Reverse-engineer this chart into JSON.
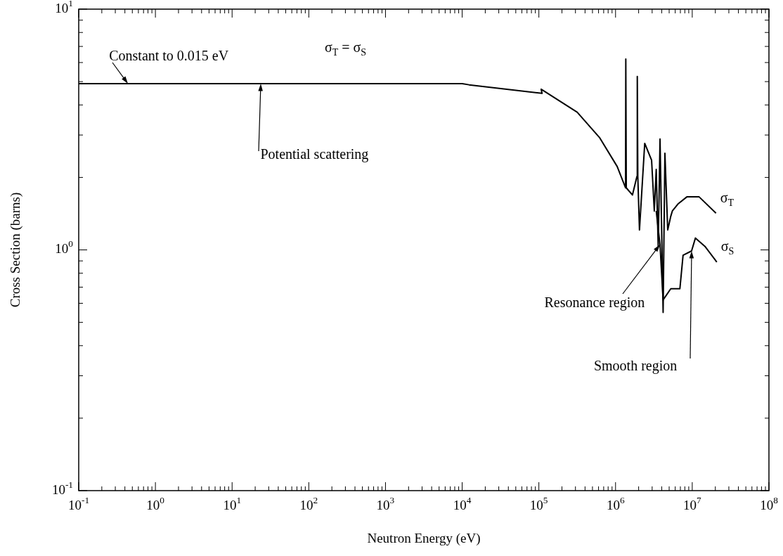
{
  "chart_data": {
    "type": "line",
    "xlabel": "Neutron Energy (eV)",
    "ylabel": "Cross Section (barns)",
    "log": "xy",
    "grid": false,
    "legend": "right",
    "marker": "none",
    "line_style": "solid",
    "xlim": [
      0.1,
      100000000
    ],
    "ylim": [
      0.1,
      10
    ],
    "xticks": [
      {
        "value": 0.1,
        "label": "10$^{-1}$"
      },
      {
        "value": 0.2,
        "label": null
      },
      {
        "value": 0.3,
        "label": null
      },
      {
        "value": 0.4,
        "label": null
      },
      {
        "value": 0.5,
        "label": null
      },
      {
        "value": 0.6,
        "label": null
      },
      {
        "value": 0.7,
        "label": null
      },
      {
        "value": 0.8,
        "label": null
      },
      {
        "value": 0.9,
        "label": null
      },
      {
        "value": 1,
        "label": "10$^{0}$"
      },
      {
        "value": 2,
        "label": null
      },
      {
        "value": 3,
        "label": null
      },
      {
        "value": 4,
        "label": null
      },
      {
        "value": 5,
        "label": null
      },
      {
        "value": 6,
        "label": null
      },
      {
        "value": 7,
        "label": null
      },
      {
        "value": 8,
        "label": null
      },
      {
        "value": 9,
        "label": null
      },
      {
        "value": 10,
        "label": "10$^{1}$"
      },
      {
        "value": 20,
        "label": null
      },
      {
        "value": 30,
        "label": null
      },
      {
        "value": 40,
        "label": null
      },
      {
        "value": 50,
        "label": null
      },
      {
        "value": 60,
        "label": null
      },
      {
        "value": 70,
        "label": null
      },
      {
        "value": 80,
        "label": null
      },
      {
        "value": 90,
        "label": null
      },
      {
        "value": 100,
        "label": "10$^{2}$"
      },
      {
        "value": 200,
        "label": null
      },
      {
        "value": 300,
        "label": null
      },
      {
        "value": 400,
        "label": null
      },
      {
        "value": 500,
        "label": null
      },
      {
        "value": 600,
        "label": null
      },
      {
        "value": 700,
        "label": null
      },
      {
        "value": 800,
        "label": null
      },
      {
        "value": 900,
        "label": null
      },
      {
        "value": 1000,
        "label": "10$^{3}$"
      },
      {
        "value": 2000,
        "label": null
      },
      {
        "value": 3000,
        "label": null
      },
      {
        "value": 4000,
        "label": null
      },
      {
        "value": 5000,
        "label": null
      },
      {
        "value": 6000,
        "label": null
      },
      {
        "value": 7000,
        "label": null
      },
      {
        "value": 8000,
        "label": null
      },
      {
        "value": 9000,
        "label": null
      },
      {
        "value": 10000,
        "label": "10$^{4}$"
      },
      {
        "value": 20000,
        "label": null
      },
      {
        "value": 30000,
        "label": null
      },
      {
        "value": 40000,
        "label": null
      },
      {
        "value": 50000,
        "label": null
      },
      {
        "value": 60000,
        "label": null
      },
      {
        "value": 70000,
        "label": null
      },
      {
        "value": 80000,
        "label": null
      },
      {
        "value": 90000,
        "label": null
      },
      {
        "value": 100000,
        "label": "10$^{5}$"
      },
      {
        "value": 200000,
        "label": null
      },
      {
        "value": 300000,
        "label": null
      },
      {
        "value": 400000,
        "label": null
      },
      {
        "value": 500000,
        "label": null
      },
      {
        "value": 600000,
        "label": null
      },
      {
        "value": 700000,
        "label": null
      },
      {
        "value": 800000,
        "label": null
      },
      {
        "value": 900000,
        "label": null
      },
      {
        "value": 1000000,
        "label": "10$^{6}$"
      },
      {
        "value": 2000000,
        "label": null
      },
      {
        "value": 3000000,
        "label": null
      },
      {
        "value": 4000000,
        "label": null
      },
      {
        "value": 5000000,
        "label": null
      },
      {
        "value": 6000000,
        "label": null
      },
      {
        "value": 7000000,
        "label": null
      },
      {
        "value": 8000000,
        "label": null
      },
      {
        "value": 9000000,
        "label": null
      },
      {
        "value": 10000000,
        "label": "10$^{7}$"
      },
      {
        "value": 20000000,
        "label": null
      },
      {
        "value": 30000000,
        "label": null
      },
      {
        "value": 40000000,
        "label": null
      },
      {
        "value": 50000000,
        "label": null
      },
      {
        "value": 60000000,
        "label": null
      },
      {
        "value": 70000000,
        "label": null
      },
      {
        "value": 80000000,
        "label": null
      },
      {
        "value": 90000000,
        "label": null
      },
      {
        "value": 100000000,
        "label": "10$^{8}$"
      }
    ],
    "yticks": [
      {
        "value": 0.1,
        "label": "10$^{-1}$"
      },
      {
        "value": 0.2,
        "label": null
      },
      {
        "value": 0.3,
        "label": null
      },
      {
        "value": 0.4,
        "label": null
      },
      {
        "value": 0.5,
        "label": null
      },
      {
        "value": 0.6,
        "label": null
      },
      {
        "value": 0.7,
        "label": null
      },
      {
        "value": 0.8,
        "label": null
      },
      {
        "value": 0.9,
        "label": null
      },
      {
        "value": 1,
        "label": "10$^{0}$"
      },
      {
        "value": 2,
        "label": null
      },
      {
        "value": 3,
        "label": null
      },
      {
        "value": 4,
        "label": null
      },
      {
        "value": 5,
        "label": null
      },
      {
        "value": 6,
        "label": null
      },
      {
        "value": 7,
        "label": null
      },
      {
        "value": 8,
        "label": null
      },
      {
        "value": 9,
        "label": null
      },
      {
        "value": 10,
        "label": "10$^{1}$"
      }
    ],
    "series": [
      {
        "name": "σ$_{T}$",
        "color": "#000000",
        "x": [
          0.1,
          1,
          10,
          100,
          1000,
          10000,
          12300,
          110000,
          107000,
          316000,
          617000,
          1050000,
          1350000,
          1360000,
          1380000,
          1660000,
          1900000,
          1920000,
          1950000,
          2050000,
          2400000,
          2950000,
          3200000,
          3390000,
          3600000,
          3800000,
          4170000,
          4400000,
          4790000,
          5250000,
          5500000,
          6500000,
          8500000,
          12300000,
          20400000
        ],
        "values": [
          4.9,
          4.9,
          4.9,
          4.9,
          4.9,
          4.9,
          4.85,
          4.47,
          4.65,
          3.73,
          2.93,
          2.22,
          1.81,
          6.2,
          1.81,
          1.69,
          2.02,
          5.25,
          2.02,
          1.21,
          2.77,
          2.36,
          1.45,
          2.16,
          1.03,
          2.89,
          0.55,
          2.52,
          1.21,
          1.38,
          1.45,
          1.55,
          1.66,
          1.66,
          1.42
        ]
      },
      {
        "name": "σ$_{S}$",
        "color": "#000000",
        "x": [
          3390000,
          3800000,
          4170000,
          5250000,
          6900000,
          7590000,
          9800000,
          11000000,
          14800000,
          20900000
        ],
        "values": [
          1.45,
          1.05,
          0.62,
          0.69,
          0.69,
          0.95,
          0.99,
          1.12,
          1.03,
          0.89
        ]
      }
    ],
    "annotations": [
      {
        "text": "Constant to 0.015 eV",
        "x": 0.44,
        "y": 4.9
      },
      {
        "text": "σ$_{T}$ = σ$_{S}$",
        "x": 300,
        "y": 4.9
      },
      {
        "text": "Potential scattering",
        "x": 23.4,
        "y": 4.9
      },
      {
        "text": "Resonance region",
        "x": 3800000,
        "y": 1.05
      },
      {
        "text": "Smooth region",
        "x": 9800000,
        "y": 0.99
      }
    ]
  }
}
